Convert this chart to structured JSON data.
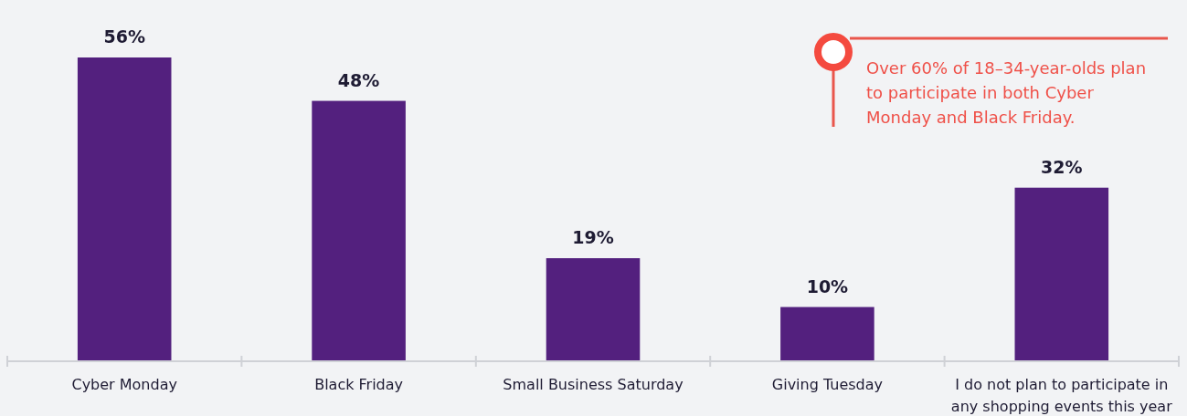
{
  "chart_data": {
    "type": "bar",
    "categories": [
      "Cyber Monday",
      "Black Friday",
      "Small Business Saturday",
      "Giving Tuesday",
      "I do not plan to participate in any shopping events this year"
    ],
    "values": [
      56,
      48,
      19,
      10,
      32
    ],
    "value_labels": [
      "56%",
      "48%",
      "19%",
      "10%",
      "32%"
    ],
    "color": "#53207e",
    "tick_labels": "x",
    "grid": false,
    "annotations": [
      "Over 60% of 18–34-year-olds plan to participate in both Cyber Monday and Black Friday."
    ]
  }
}
